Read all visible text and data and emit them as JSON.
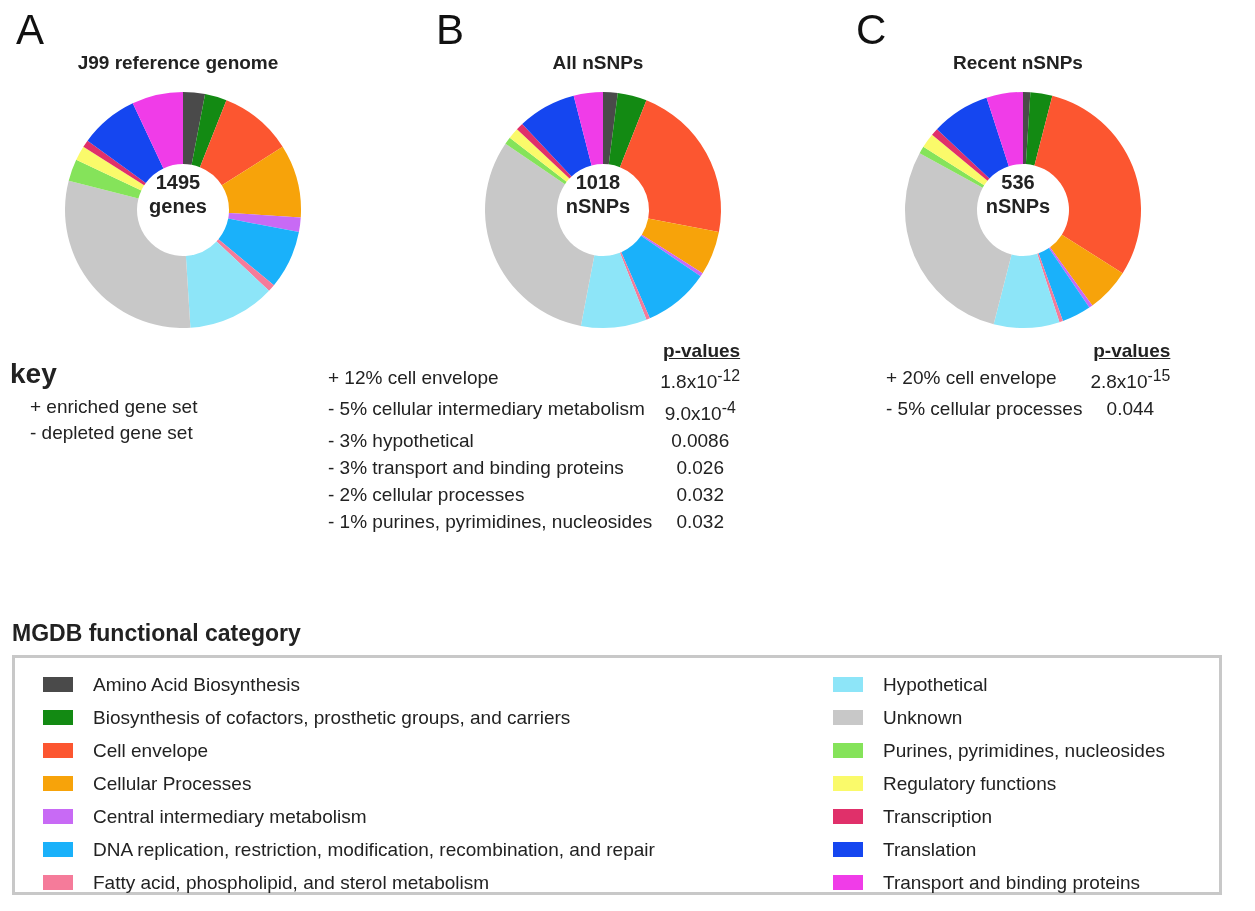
{
  "chart_data": [
    {
      "type": "donut",
      "title": "J99 reference genome",
      "categories": [
        "Amino Acid Biosynthesis",
        "Biosynthesis of cofactors, prosthetic groups, and carriers",
        "Cell envelope",
        "Cellular Processes",
        "Central intermediary metabolism",
        "DNA replication, restriction, modification, recombination, and repair",
        "Fatty acid, phospholipid, and sterol metabolism",
        "Hypothetical",
        "Unknown",
        "Purines, pyrimidines, nucleosides",
        "Regulatory functions",
        "Transcription",
        "Translation",
        "Transport and binding proteins"
      ],
      "values": [
        3,
        3,
        10,
        10,
        2,
        8,
        1,
        12,
        30,
        3,
        2,
        1,
        8,
        7
      ],
      "colors": [
        "#4a4a4a",
        "#138a13",
        "#fc5630",
        "#f7a30a",
        "#c86af5",
        "#1ab1fa",
        "#f57b9a",
        "#8de5f8",
        "#c8c8c8",
        "#85e35a",
        "#fafa6a",
        "#e0306a",
        "#1546f0",
        "#f03ce8"
      ],
      "legend": "bottom",
      "legend_title": "MGDB functional category",
      "annotations": [
        "A",
        "1495 genes",
        "key",
        "+ enriched gene set",
        "- depleted gene set"
      ]
    },
    {
      "type": "donut",
      "title": "All nSNPs",
      "categories": [
        null,
        null,
        null,
        null,
        null,
        null,
        null,
        null,
        null,
        null,
        null,
        null,
        null,
        null
      ],
      "values": [
        2,
        4,
        22,
        6,
        0.5,
        9,
        0.5,
        9,
        31.5,
        1,
        1.5,
        1,
        8,
        4
      ],
      "colors": [
        "#4a4a4a",
        "#138a13",
        "#fc5630",
        "#f7a30a",
        "#c86af5",
        "#1ab1fa",
        "#f57b9a",
        "#8de5f8",
        "#c8c8c8",
        "#85e35a",
        "#fafa6a",
        "#e0306a",
        "#1546f0",
        "#f03ce8"
      ],
      "annotations": [
        "B",
        "1018 nSNPs",
        "p-values",
        "+ 12% cell envelope",
        "1.8x10$^{-12}$",
        "- 5% cellular intermediary metabolism",
        "9.0x10$^{-4}$",
        "- 3% hypothetical",
        "0.0086",
        "- 3% transport and binding proteins",
        "0.026",
        "- 2% cellular processes",
        "0.032",
        "- 1% purines, pyrimidines, nucleosides",
        "0.032"
      ]
    },
    {
      "type": "donut",
      "title": "Recent nSNPs",
      "categories": [
        null,
        null,
        null,
        null,
        null,
        null,
        null,
        null,
        null,
        null,
        null,
        null,
        null,
        null
      ],
      "values": [
        1,
        3,
        30,
        6,
        0.5,
        4,
        0.5,
        9,
        29,
        1,
        2,
        1,
        8,
        5
      ],
      "colors": [
        "#4a4a4a",
        "#138a13",
        "#fc5630",
        "#f7a30a",
        "#c86af5",
        "#1ab1fa",
        "#f57b9a",
        "#8de5f8",
        "#c8c8c8",
        "#85e35a",
        "#fafa6a",
        "#e0306a",
        "#1546f0",
        "#f03ce8"
      ],
      "annotations": [
        "C",
        "536 nSNPs",
        "p-values",
        "+ 20% cell envelope",
        "2.8x10$^{-15}$",
        "- 5% cellular processes",
        "0.044"
      ]
    }
  ]
}
